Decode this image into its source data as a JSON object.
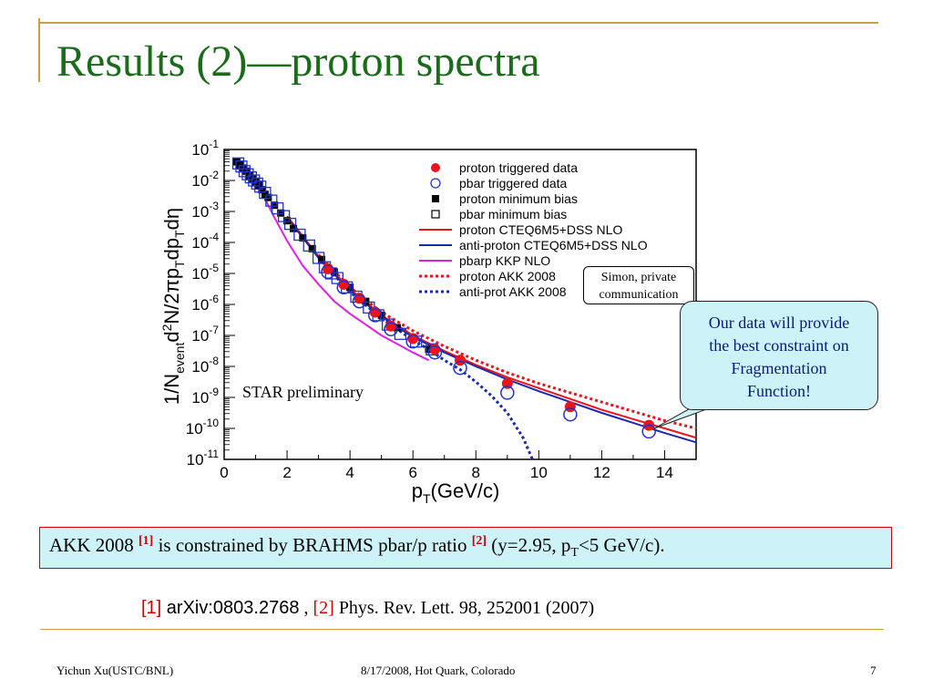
{
  "slide": {
    "title": "Results (2)—proton spectra",
    "footer_left": "Yichun Xu(USTC/BNL)",
    "footer_center": "8/17/2008, Hot Quark, Colorado",
    "page_number": "7"
  },
  "callouts": {
    "simon_line1": "Simon, private",
    "simon_line2": "communication",
    "our_data_line1": "Our data will provide",
    "our_data_line2": "the best constraint on",
    "our_data_line3": "Fragmentation",
    "our_data_line4": "Function!"
  },
  "note": {
    "part1": "AKK 2008 ",
    "ref1": "[1]",
    "part2": " is constrained by BRAHMS pbar/p ratio ",
    "ref2": "[2]",
    "part3": " (y=2.95, p",
    "sub": "T",
    "part4": "<5 GeV/c)."
  },
  "references": {
    "ref1_tag": "[1]",
    "ref1_text": " arXiv:0803.2768",
    "separator": " , ",
    "ref2_tag": "[2]",
    "ref2_text": " Phys. Rev. Lett. 98, 252001 (2007)"
  },
  "chart_data": {
    "type": "scatter",
    "xlabel": "p_T(GeV/c)",
    "ylabel": "1/N_event d²N/2πp_T dp_T dη",
    "xlim": [
      0,
      15
    ],
    "ylim_exponent": [
      -11,
      -1
    ],
    "y_scale": "log",
    "x_ticks": [
      "0",
      "2",
      "4",
      "6",
      "8",
      "10",
      "12",
      "14"
    ],
    "y_ticks": [
      {
        "base": "10",
        "exp": "-1"
      },
      {
        "base": "10",
        "exp": "-2"
      },
      {
        "base": "10",
        "exp": "-3"
      },
      {
        "base": "10",
        "exp": "-4"
      },
      {
        "base": "10",
        "exp": "-5"
      },
      {
        "base": "10",
        "exp": "-6"
      },
      {
        "base": "10",
        "exp": "-7"
      },
      {
        "base": "10",
        "exp": "-8"
      },
      {
        "base": "10",
        "exp": "-9"
      },
      {
        "base": "10",
        "exp": "-10"
      },
      {
        "base": "10",
        "exp": "-11"
      }
    ],
    "annotation": "STAR preliminary",
    "legend_position": "top-right",
    "legend": [
      {
        "label": "proton triggered data",
        "marker": "filled-circle",
        "color": "#e8141e"
      },
      {
        "label": "pbar triggered data",
        "marker": "open-circle",
        "color": "#2233cc"
      },
      {
        "label": "proton minimum bias",
        "marker": "filled-square",
        "color": "#000000"
      },
      {
        "label": "pbar minimum bias",
        "marker": "open-square",
        "color": "#000000"
      },
      {
        "label": "proton CTEQ6M5+DSS NLO",
        "line": "solid",
        "color": "#e8141e"
      },
      {
        "label": "anti-proton CTEQ6M5+DSS NLO",
        "line": "solid",
        "color": "#1a2aa8"
      },
      {
        "label": "pbarp KKP NLO",
        "line": "solid",
        "color": "#e020e0"
      },
      {
        "label": "proton AKK 2008",
        "line": "dotted",
        "color": "#e8141e"
      },
      {
        "label": "anti-prot AKK 2008",
        "line": "dotted",
        "color": "#1a2aa8"
      }
    ],
    "series": [
      {
        "name": "proton minimum bias",
        "marker": "filled-square",
        "color": "#000000",
        "points": [
          [
            0.4,
            -1.4
          ],
          [
            0.5,
            -1.5
          ],
          [
            0.6,
            -1.6
          ],
          [
            0.7,
            -1.7
          ],
          [
            0.8,
            -1.85
          ],
          [
            0.9,
            -1.95
          ],
          [
            1.0,
            -2.05
          ],
          [
            1.1,
            -2.15
          ],
          [
            1.2,
            -2.3
          ],
          [
            1.3,
            -2.45
          ],
          [
            1.4,
            -2.55
          ],
          [
            1.6,
            -2.8
          ],
          [
            1.8,
            -3.05
          ],
          [
            2.0,
            -3.3
          ],
          [
            2.2,
            -3.55
          ],
          [
            2.5,
            -3.85
          ],
          [
            2.8,
            -4.2
          ],
          [
            3.1,
            -4.55
          ],
          [
            3.5,
            -4.95
          ],
          [
            4.0,
            -5.45
          ],
          [
            4.5,
            -5.9
          ],
          [
            5.0,
            -6.35
          ],
          [
            5.5,
            -6.75
          ],
          [
            6.5,
            -7.45
          ]
        ]
      },
      {
        "name": "pbar minimum bias",
        "marker": "open-square",
        "color": "#2233cc",
        "points": [
          [
            0.45,
            -1.45
          ],
          [
            0.55,
            -1.55
          ],
          [
            0.65,
            -1.7
          ],
          [
            0.75,
            -1.8
          ],
          [
            0.85,
            -1.9
          ],
          [
            0.95,
            -2.0
          ],
          [
            1.05,
            -2.1
          ],
          [
            1.15,
            -2.2
          ],
          [
            1.3,
            -2.4
          ],
          [
            1.5,
            -2.65
          ],
          [
            1.7,
            -2.9
          ],
          [
            1.9,
            -3.15
          ],
          [
            2.1,
            -3.4
          ],
          [
            2.4,
            -3.75
          ],
          [
            2.7,
            -4.1
          ],
          [
            3.0,
            -4.5
          ],
          [
            3.2,
            -4.8
          ],
          [
            3.4,
            -5.0
          ],
          [
            3.6,
            -5.15
          ],
          [
            3.9,
            -5.45
          ],
          [
            4.2,
            -5.75
          ],
          [
            4.6,
            -6.1
          ],
          [
            4.9,
            -6.35
          ],
          [
            5.2,
            -6.65
          ],
          [
            5.6,
            -6.95
          ],
          [
            6.1,
            -7.2
          ],
          [
            6.6,
            -7.45
          ]
        ]
      },
      {
        "name": "proton triggered data",
        "marker": "filled-circle",
        "color": "#e8141e",
        "points": [
          [
            3.3,
            -4.85
          ],
          [
            3.8,
            -5.35
          ],
          [
            4.3,
            -5.8
          ],
          [
            4.8,
            -6.25
          ],
          [
            5.3,
            -6.7
          ],
          [
            6.0,
            -7.1
          ],
          [
            6.7,
            -7.45
          ],
          [
            7.5,
            -7.8
          ],
          [
            9.0,
            -8.55
          ],
          [
            11.0,
            -9.3
          ],
          [
            13.5,
            -9.9
          ]
        ]
      },
      {
        "name": "pbar triggered data",
        "marker": "open-circle",
        "color": "#2233cc",
        "points": [
          [
            3.3,
            -4.95
          ],
          [
            3.8,
            -5.45
          ],
          [
            4.3,
            -5.9
          ],
          [
            4.8,
            -6.35
          ],
          [
            5.3,
            -6.8
          ],
          [
            6.0,
            -7.2
          ],
          [
            6.7,
            -7.55
          ],
          [
            7.5,
            -8.05
          ],
          [
            9.0,
            -8.85
          ],
          [
            11.0,
            -9.55
          ],
          [
            13.5,
            -10.1
          ]
        ]
      },
      {
        "name": "proton CTEQ6M5+DSS NLO",
        "line": "solid",
        "color": "#e8141e",
        "points": [
          [
            2,
            -3.15
          ],
          [
            3,
            -4.45
          ],
          [
            4,
            -5.5
          ],
          [
            5,
            -6.35
          ],
          [
            6,
            -7.0
          ],
          [
            7,
            -7.5
          ],
          [
            8,
            -7.95
          ],
          [
            9,
            -8.35
          ],
          [
            10,
            -8.7
          ],
          [
            11,
            -9.05
          ],
          [
            12,
            -9.4
          ],
          [
            13,
            -9.7
          ],
          [
            14,
            -10.0
          ],
          [
            15,
            -10.3
          ]
        ]
      },
      {
        "name": "anti-proton CTEQ6M5+DSS NLO",
        "line": "solid",
        "color": "#1a2aa8",
        "points": [
          [
            2,
            -3.2
          ],
          [
            3,
            -4.5
          ],
          [
            4,
            -5.55
          ],
          [
            5,
            -6.4
          ],
          [
            6,
            -7.05
          ],
          [
            7,
            -7.55
          ],
          [
            8,
            -8.0
          ],
          [
            9,
            -8.42
          ],
          [
            10,
            -8.8
          ],
          [
            11,
            -9.15
          ],
          [
            12,
            -9.5
          ],
          [
            13,
            -9.82
          ],
          [
            14,
            -10.15
          ],
          [
            15,
            -10.45
          ]
        ]
      },
      {
        "name": "pbarp KKP NLO",
        "line": "solid",
        "color": "#e020e0",
        "points": [
          [
            1.3,
            -2.6
          ],
          [
            1.6,
            -3.2
          ],
          [
            2.0,
            -3.95
          ],
          [
            2.5,
            -4.75
          ],
          [
            3.0,
            -5.35
          ],
          [
            3.5,
            -5.9
          ],
          [
            4.0,
            -6.3
          ],
          [
            5.0,
            -7.0
          ],
          [
            6.0,
            -7.55
          ],
          [
            6.5,
            -7.8
          ]
        ]
      },
      {
        "name": "proton AKK 2008",
        "line": "dotted",
        "color": "#e8141e",
        "points": [
          [
            3,
            -4.4
          ],
          [
            4,
            -5.45
          ],
          [
            5,
            -6.25
          ],
          [
            6,
            -6.85
          ],
          [
            7,
            -7.35
          ],
          [
            8,
            -7.8
          ],
          [
            9,
            -8.2
          ],
          [
            10,
            -8.55
          ],
          [
            11,
            -8.85
          ],
          [
            12,
            -9.15
          ],
          [
            13,
            -9.45
          ],
          [
            14,
            -9.75
          ],
          [
            15,
            -10.0
          ]
        ]
      },
      {
        "name": "anti-prot AKK 2008",
        "line": "dotted",
        "color": "#1a2aa8",
        "points": [
          [
            3,
            -4.5
          ],
          [
            4,
            -5.6
          ],
          [
            5,
            -6.45
          ],
          [
            6,
            -7.15
          ],
          [
            6.5,
            -7.45
          ],
          [
            7,
            -7.8
          ],
          [
            7.5,
            -8.1
          ],
          [
            8,
            -8.5
          ],
          [
            8.5,
            -8.95
          ],
          [
            9,
            -9.5
          ],
          [
            9.5,
            -10.3
          ],
          [
            9.8,
            -11.0
          ]
        ]
      }
    ]
  }
}
